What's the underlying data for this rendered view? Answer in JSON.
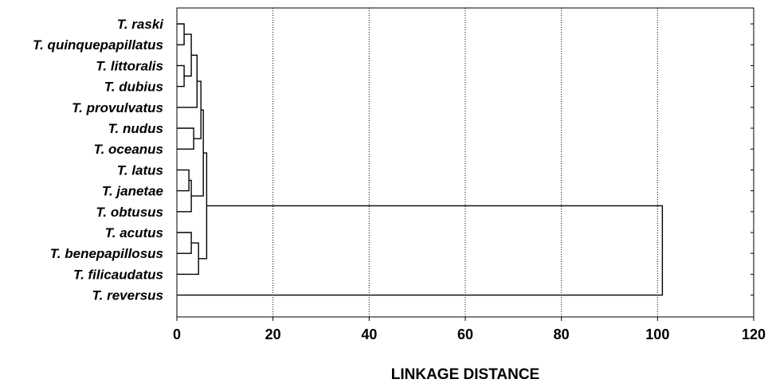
{
  "chart_data": {
    "type": "dendrogram",
    "orientation": "horizontal",
    "xlabel": "LINKAGE DISTANCE",
    "xlim": [
      0,
      120
    ],
    "x_ticks": [
      0,
      20,
      40,
      60,
      80,
      100,
      120
    ],
    "grid": "vertical dotted",
    "leaves": [
      "T. raski",
      "T. quinquepapillatus",
      "T. littoralis",
      "T. dubius",
      "T. provulvatus",
      "T. nudus",
      "T. oceanus",
      "T. latus",
      "T. janetae",
      "T. obtusus",
      "T. acutus",
      "T. benepapillosus",
      "T. filicaudatus",
      "T. reversus"
    ],
    "merges": [
      {
        "a": "T. raski",
        "b": "T. quinquepapillatus",
        "distance": 1.5
      },
      {
        "a": "T. littoralis",
        "b": "T. dubius",
        "distance": 1.5
      },
      {
        "a": "C1",
        "b": "C2",
        "distance": 3.0
      },
      {
        "a": "C3",
        "b": "T. provulvatus",
        "distance": 4.2
      },
      {
        "a": "T. nudus",
        "b": "T. oceanus",
        "distance": 3.5
      },
      {
        "a": "C4",
        "b": "C5",
        "distance": 5.0
      },
      {
        "a": "T. latus",
        "b": "T. janetae",
        "distance": 2.5
      },
      {
        "a": "C7",
        "b": "T. obtusus",
        "distance": 3.0
      },
      {
        "a": "C6",
        "b": "C8",
        "distance": 5.5
      },
      {
        "a": "T. acutus",
        "b": "T. benepapillosus",
        "distance": 3.0
      },
      {
        "a": "C10",
        "b": "T. filicaudatus",
        "distance": 4.5
      },
      {
        "a": "C9",
        "b": "C11",
        "distance": 6.2
      },
      {
        "a": "C12",
        "b": "T. reversus",
        "distance": 101.0
      }
    ]
  },
  "colors": {
    "line": "#000000",
    "grid": "#000000",
    "background": "#ffffff"
  }
}
